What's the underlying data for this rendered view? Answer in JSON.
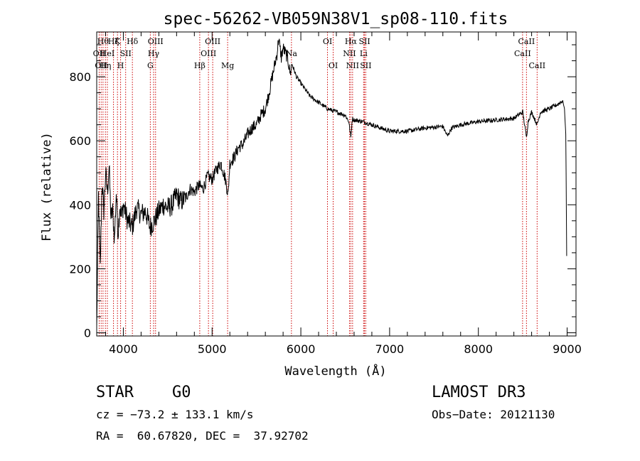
{
  "chart_data": {
    "type": "line",
    "title": "spec-56262-VB059N38V1_sp08-110.fits",
    "xlabel": "Wavelength (Å)",
    "ylabel": "Flux (relative)",
    "xlim": [
      3700,
      9100
    ],
    "ylim": [
      -10,
      940
    ],
    "xticks": [
      4000,
      5000,
      6000,
      7000,
      8000,
      9000
    ],
    "yticks": [
      0,
      200,
      400,
      600,
      800
    ],
    "series": [
      {
        "name": "flux",
        "x": [
          3700,
          3720,
          3740,
          3760,
          3780,
          3800,
          3820,
          3840,
          3860,
          3880,
          3900,
          3920,
          3940,
          3960,
          3980,
          4000,
          4050,
          4100,
          4150,
          4200,
          4250,
          4300,
          4350,
          4400,
          4450,
          4500,
          4550,
          4600,
          4650,
          4700,
          4750,
          4800,
          4850,
          4900,
          4950,
          5000,
          5050,
          5100,
          5150,
          5180,
          5200,
          5250,
          5300,
          5350,
          5400,
          5450,
          5500,
          5550,
          5600,
          5650,
          5700,
          5730,
          5750,
          5780,
          5800,
          5850,
          5880,
          5900,
          5950,
          6000,
          6100,
          6200,
          6300,
          6400,
          6500,
          6540,
          6563,
          6580,
          6600,
          6700,
          6800,
          7000,
          7200,
          7400,
          7600,
          7650,
          7700,
          7800,
          8000,
          8200,
          8400,
          8500,
          8542,
          8560,
          8600,
          8662,
          8700,
          8800,
          8900,
          8950,
          8970,
          8985,
          8995
        ],
        "values": [
          10,
          430,
          200,
          470,
          380,
          500,
          440,
          520,
          360,
          380,
          290,
          440,
          310,
          400,
          360,
          400,
          350,
          330,
          390,
          370,
          380,
          330,
          350,
          380,
          400,
          390,
          400,
          430,
          410,
          420,
          450,
          440,
          460,
          450,
          490,
          480,
          510,
          530,
          480,
          430,
          530,
          550,
          580,
          590,
          620,
          640,
          650,
          680,
          700,
          760,
          830,
          870,
          920,
          860,
          890,
          860,
          810,
          840,
          800,
          780,
          740,
          720,
          700,
          690,
          680,
          660,
          610,
          670,
          665,
          660,
          650,
          630,
          630,
          640,
          645,
          615,
          640,
          650,
          660,
          665,
          670,
          690,
          610,
          660,
          690,
          650,
          690,
          700,
          715,
          725,
          700,
          620,
          240
        ]
      }
    ],
    "lines": [
      {
        "wl": 3728,
        "label": "OII",
        "row": 2
      },
      {
        "wl": 3750,
        "label": "OII",
        "row": 3
      },
      {
        "wl": 3771,
        "label": "Hθ",
        "row": 1
      },
      {
        "wl": 3798,
        "label": "Hη",
        "row": 3
      },
      {
        "wl": 3820,
        "label": "HeI",
        "row": 2
      },
      {
        "wl": 3889,
        "label": "Hζ",
        "row": 1
      },
      {
        "wl": 3934,
        "label": "K",
        "row": 1
      },
      {
        "wl": 3969,
        "label": "H",
        "row": 3
      },
      {
        "wl": 4026,
        "label": "SII",
        "row": 2
      },
      {
        "wl": 4102,
        "label": "Hδ",
        "row": 1
      },
      {
        "wl": 4304,
        "label": "G",
        "row": 3
      },
      {
        "wl": 4341,
        "label": "Hγ",
        "row": 2
      },
      {
        "wl": 4363,
        "label": "OIII",
        "row": 1
      },
      {
        "wl": 4861,
        "label": "Hβ",
        "row": 3
      },
      {
        "wl": 4959,
        "label": "OIII",
        "row": 2
      },
      {
        "wl": 5007,
        "label": "OIII",
        "row": 1
      },
      {
        "wl": 5175,
        "label": "Mg",
        "row": 3
      },
      {
        "wl": 5894,
        "label": "Na",
        "row": 2
      },
      {
        "wl": 6300,
        "label": "OI",
        "row": 1
      },
      {
        "wl": 6364,
        "label": "OI",
        "row": 3
      },
      {
        "wl": 6548,
        "label": "NII",
        "row": 2
      },
      {
        "wl": 6563,
        "label": "Hα",
        "row": 1
      },
      {
        "wl": 6583,
        "label": "NII",
        "row": 3
      },
      {
        "wl": 6707,
        "label": "Li",
        "row": 2
      },
      {
        "wl": 6717,
        "label": "SII",
        "row": 1
      },
      {
        "wl": 6731,
        "label": "SII",
        "row": 3
      },
      {
        "wl": 8498,
        "label": "CaII",
        "row": 2
      },
      {
        "wl": 8542,
        "label": "CaII",
        "row": 1
      },
      {
        "wl": 8662,
        "label": "CaII",
        "row": 3
      }
    ]
  },
  "info": {
    "class": "STAR",
    "subclass": "G0",
    "survey": "LAMOST DR3",
    "cz": "cz = −73.2 ± 133.1 km/s",
    "obs_date": "Obs−Date: 20121130",
    "radec": "RA =  60.67820, DEC =  37.92702"
  },
  "colors": {
    "axis": "#000000",
    "line_marker": "#cc0000",
    "spectrum": "#000000"
  }
}
